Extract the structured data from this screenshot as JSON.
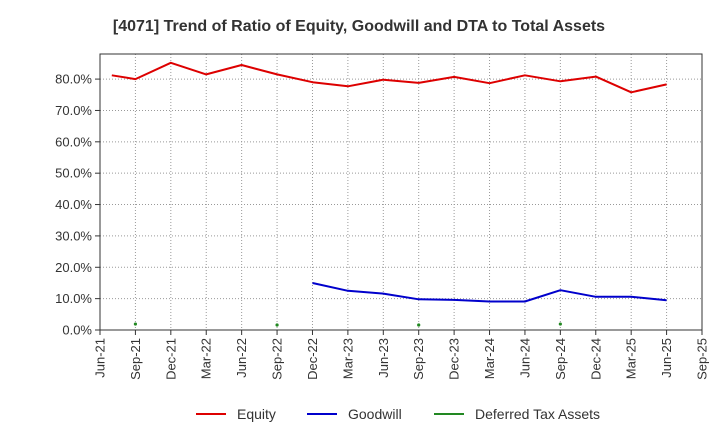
{
  "chart_data": {
    "type": "line",
    "title": "[4071]  Trend of Ratio of Equity, Goodwill and DTA to Total Assets",
    "xlabel": "",
    "ylabel": "",
    "x_ticks": [
      "Jun-21",
      "Sep-21",
      "Dec-21",
      "Mar-22",
      "Jun-22",
      "Sep-22",
      "Dec-22",
      "Mar-23",
      "Jun-23",
      "Sep-23",
      "Dec-23",
      "Mar-24",
      "Jun-24",
      "Sep-24",
      "Dec-24",
      "Mar-25",
      "Jun-25",
      "Sep-25"
    ],
    "y_ticks": [
      "0.0%",
      "10.0%",
      "20.0%",
      "30.0%",
      "40.0%",
      "50.0%",
      "60.0%",
      "70.0%",
      "80.0%"
    ],
    "ylim": [
      0,
      88
    ],
    "grid": true,
    "legend_position": "bottom",
    "series": [
      {
        "name": "Equity",
        "color": "#dd0000",
        "points": [
          [
            "Jul-21",
            81.2
          ],
          [
            "Sep-21",
            80.0
          ],
          [
            "Dec-21",
            85.2
          ],
          [
            "Mar-22",
            81.5
          ],
          [
            "Jun-22",
            84.5
          ],
          [
            "Sep-22",
            81.5
          ],
          [
            "Dec-22",
            79.0
          ],
          [
            "Mar-23",
            77.7
          ],
          [
            "Jun-23",
            79.8
          ],
          [
            "Sep-23",
            78.8
          ],
          [
            "Dec-23",
            80.7
          ],
          [
            "Mar-24",
            78.7
          ],
          [
            "Jun-24",
            81.2
          ],
          [
            "Sep-24",
            79.3
          ],
          [
            "Dec-24",
            80.8
          ],
          [
            "Mar-25",
            75.8
          ],
          [
            "Jun-25",
            78.3
          ]
        ]
      },
      {
        "name": "Goodwill",
        "color": "#0000cc",
        "points": [
          [
            "Dec-22",
            15.0
          ],
          [
            "Mar-23",
            12.5
          ],
          [
            "Jun-23",
            11.6
          ],
          [
            "Sep-23",
            9.8
          ],
          [
            "Dec-23",
            9.6
          ],
          [
            "Mar-24",
            9.1
          ],
          [
            "Jun-24",
            9.1
          ],
          [
            "Sep-24",
            12.7
          ],
          [
            "Dec-24",
            10.6
          ],
          [
            "Mar-25",
            10.6
          ],
          [
            "Jun-25",
            9.5
          ]
        ]
      },
      {
        "name": "Deferred Tax Assets",
        "color": "#228822",
        "points": [
          [
            "Sep-21",
            1.9
          ],
          [
            "Sep-22",
            1.6
          ],
          [
            "Sep-23",
            1.6
          ],
          [
            "Sep-24",
            1.9
          ]
        ]
      }
    ]
  }
}
